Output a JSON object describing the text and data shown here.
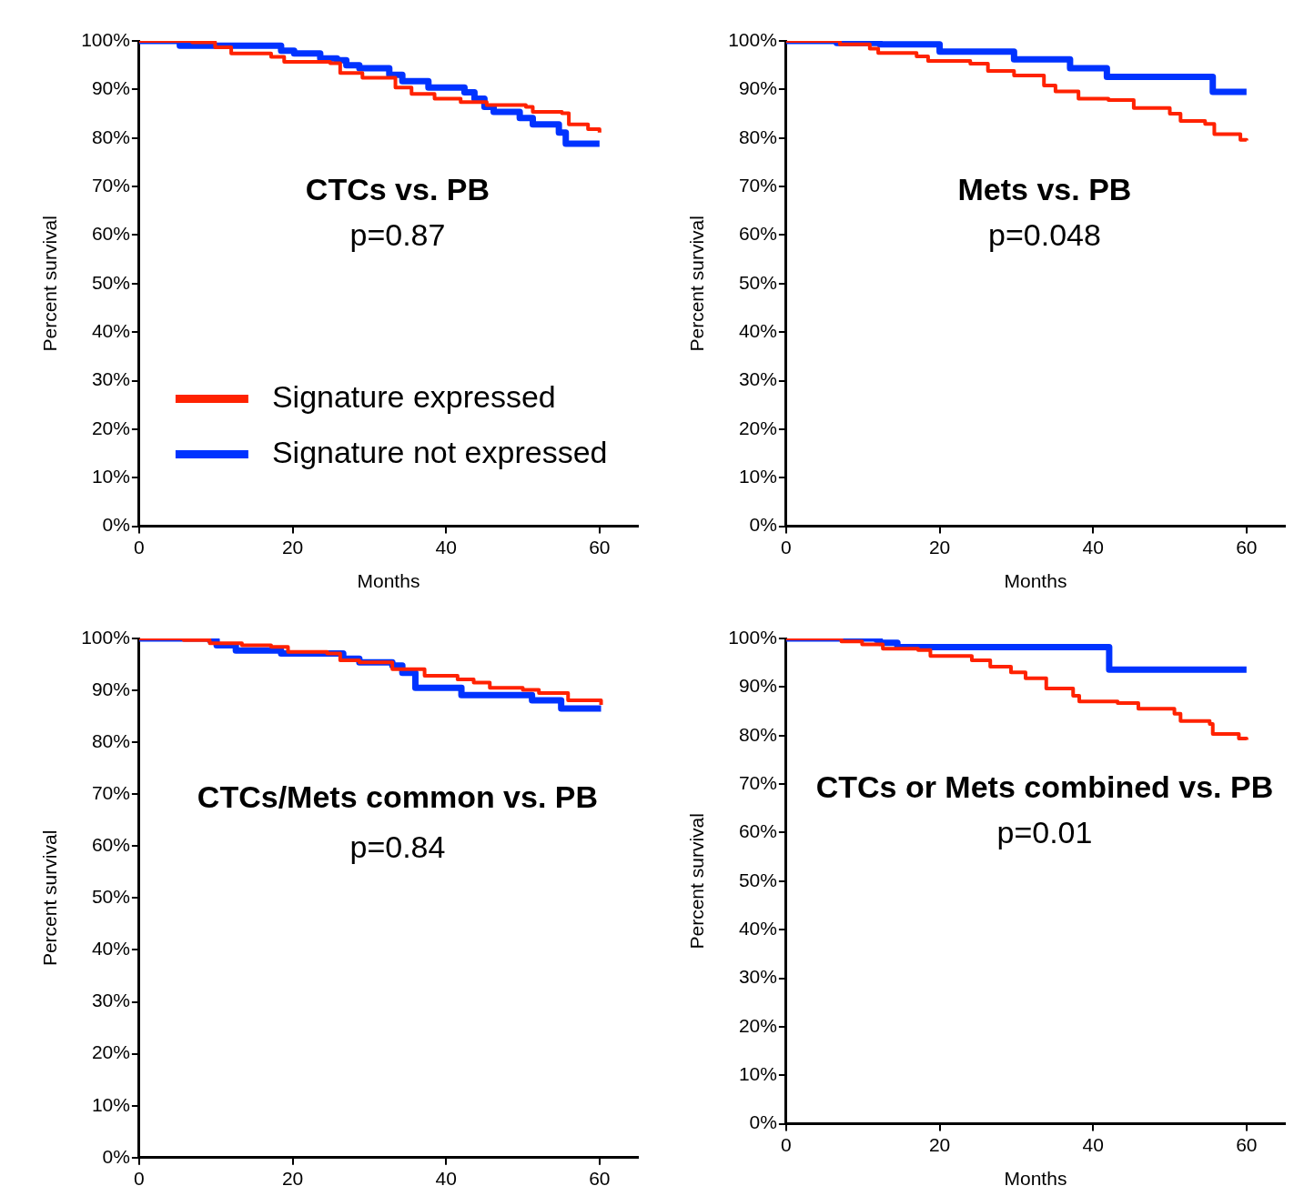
{
  "chart_data": [
    {
      "type": "step",
      "title": "CTCs vs. PB",
      "annotations": [
        "p=0.87"
      ],
      "xlabel": "Months",
      "ylabel": "Percent survival",
      "xlim": [
        0,
        65
      ],
      "xticks": [
        0,
        20,
        40,
        60
      ],
      "ylim": [
        0,
        100
      ],
      "yticks": [
        {
          "value": 0,
          "label": "0%"
        },
        {
          "value": 10,
          "label": "10%"
        },
        {
          "value": 20,
          "label": "20%"
        },
        {
          "value": 30,
          "label": "30%"
        },
        {
          "value": 40,
          "label": "40%"
        },
        {
          "value": 50,
          "label": "50%"
        },
        {
          "value": 60,
          "label": "60%"
        },
        {
          "value": 70,
          "label": "70%"
        },
        {
          "value": 80,
          "label": "80%"
        },
        {
          "value": 90,
          "label": "90%"
        },
        {
          "value": 100,
          "label": "100%"
        }
      ],
      "grid": false,
      "legend": "bottom left",
      "marker": "none",
      "line_style": "solid",
      "series": [
        {
          "name": "Signature expressed",
          "color": "#ff2200",
          "x": [
            0,
            4.8,
            6.9,
            9.9,
            12.0,
            17.2,
            18.9,
            24.9,
            26.2,
            29.1,
            33.4,
            35.5,
            38.5,
            41.9,
            45.3,
            50.4,
            51.3,
            55.1,
            56.0,
            58.5,
            60.0
          ],
          "values": [
            100,
            100,
            99.7,
            98.7,
            97.4,
            96.7,
            95.7,
            95.4,
            93.4,
            92.4,
            90.4,
            89.1,
            88.1,
            87.4,
            86.8,
            86.4,
            85.4,
            85.1,
            82.8,
            81.8,
            81.1
          ]
        },
        {
          "name": "Signature not expressed",
          "color": "#0033ff",
          "x": [
            0,
            4.8,
            5.3,
            18.1,
            18.5,
            20.2,
            23.6,
            25.8,
            27.0,
            28.7,
            32.6,
            34.3,
            37.7,
            42.4,
            43.7,
            45.0,
            46.2,
            49.6,
            51.3,
            54.7,
            55.6,
            60.0
          ],
          "values": [
            100,
            100,
            99.0,
            99.0,
            98.0,
            97.4,
            96.4,
            96.0,
            95.0,
            94.4,
            93.0,
            91.7,
            90.4,
            89.4,
            88.1,
            86.4,
            85.4,
            84.1,
            82.8,
            81.1,
            78.8,
            78.8
          ]
        }
      ]
    },
    {
      "type": "step",
      "title": "Mets vs. PB",
      "annotations": [
        "p=0.048"
      ],
      "xlabel": "Months",
      "ylabel": "Percent survival",
      "xlim": [
        0,
        65
      ],
      "xticks": [
        0,
        20,
        40,
        60
      ],
      "ylim": [
        0,
        100
      ],
      "yticks": [
        {
          "value": 0,
          "label": "0%"
        },
        {
          "value": 10,
          "label": "10%"
        },
        {
          "value": 20,
          "label": "20%"
        },
        {
          "value": 30,
          "label": "30%"
        },
        {
          "value": 40,
          "label": "40%"
        },
        {
          "value": 50,
          "label": "50%"
        },
        {
          "value": 60,
          "label": "60%"
        },
        {
          "value": 70,
          "label": "70%"
        },
        {
          "value": 80,
          "label": "80%"
        },
        {
          "value": 90,
          "label": "90%"
        },
        {
          "value": 100,
          "label": "100%"
        }
      ],
      "grid": false,
      "marker": "none",
      "line_style": "solid",
      "series": [
        {
          "color": "#ff2200",
          "x": [
            0,
            5.1,
            7.0,
            10.9,
            12.0,
            17.0,
            18.5,
            24.0,
            26.3,
            29.7,
            33.6,
            35.1,
            38.1,
            42.0,
            45.3,
            50.0,
            51.4,
            54.6,
            55.8,
            59.2,
            60.0
          ],
          "values": [
            100,
            100,
            99.3,
            98.4,
            97.5,
            96.8,
            95.9,
            95.3,
            93.8,
            92.9,
            90.8,
            89.6,
            88.1,
            87.8,
            86.2,
            85.0,
            83.5,
            82.9,
            80.8,
            79.6,
            79.5
          ]
        },
        {
          "color": "#0033ff",
          "x": [
            0,
            6.6,
            12.2,
            20.0,
            29.7,
            37.0,
            41.8,
            55.6,
            60.0
          ],
          "values": [
            100,
            99.6,
            99.3,
            97.8,
            96.2,
            94.4,
            92.6,
            89.5,
            89.5
          ]
        }
      ]
    },
    {
      "type": "step",
      "title": "CTCs/Mets common vs. PB",
      "annotations": [
        "p=0.84"
      ],
      "ylabel": "Percent survival",
      "xlim": [
        0,
        65
      ],
      "xticks": [
        0,
        20,
        40,
        60
      ],
      "ylim": [
        0,
        100
      ],
      "yticks": [
        {
          "value": 0,
          "label": "0%"
        },
        {
          "value": 10,
          "label": "10%"
        },
        {
          "value": 20,
          "label": "20%"
        },
        {
          "value": 30,
          "label": "30%"
        },
        {
          "value": 40,
          "label": "40%"
        },
        {
          "value": 50,
          "label": "50%"
        },
        {
          "value": 60,
          "label": "60%"
        },
        {
          "value": 70,
          "label": "70%"
        },
        {
          "value": 80,
          "label": "80%"
        },
        {
          "value": 90,
          "label": "90%"
        },
        {
          "value": 100,
          "label": "100%"
        }
      ],
      "grid": false,
      "marker": "none",
      "line_style": "solid",
      "series": [
        {
          "color": "#ff2200",
          "x": [
            0,
            4.9,
            5.8,
            9.2,
            13.4,
            17.2,
            19.4,
            24.5,
            26.2,
            28.7,
            33.0,
            37.2,
            41.5,
            43.6,
            45.7,
            50.0,
            52.1,
            55.9,
            60.2
          ],
          "values": [
            100,
            100,
            99.7,
            99.1,
            98.7,
            98.4,
            97.4,
            97.1,
            95.8,
            95.4,
            94.1,
            92.8,
            92.1,
            91.5,
            90.5,
            90.1,
            89.5,
            88.1,
            87.2
          ]
        },
        {
          "color": "#0033ff",
          "x": [
            0,
            6.3,
            9.2,
            10.1,
            12.6,
            18.5,
            26.6,
            28.7,
            33.0,
            34.3,
            36.0,
            42.0,
            51.2,
            55.0,
            60.2
          ],
          "values": [
            100,
            100,
            99.7,
            98.7,
            97.7,
            97.1,
            96.1,
            95.4,
            94.8,
            93.4,
            90.5,
            89.1,
            88.1,
            86.5,
            86.5
          ]
        }
      ]
    },
    {
      "type": "step",
      "title": "CTCs or Mets combined vs. PB",
      "annotations": [
        "p=0.01"
      ],
      "xlabel": "Months",
      "ylabel": "Percent survival",
      "xlim": [
        0,
        65
      ],
      "xticks": [
        0,
        20,
        40,
        60
      ],
      "ylim": [
        0,
        100
      ],
      "yticks": [
        {
          "value": 0,
          "label": "0%"
        },
        {
          "value": 10,
          "label": "10%"
        },
        {
          "value": 20,
          "label": "20%"
        },
        {
          "value": 30,
          "label": "30%"
        },
        {
          "value": 40,
          "label": "40%"
        },
        {
          "value": 50,
          "label": "50%"
        },
        {
          "value": 60,
          "label": "60%"
        },
        {
          "value": 70,
          "label": "70%"
        },
        {
          "value": 80,
          "label": "80%"
        },
        {
          "value": 90,
          "label": "90%"
        },
        {
          "value": 100,
          "label": "100%"
        }
      ],
      "grid": false,
      "marker": "none",
      "line_style": "solid",
      "series": [
        {
          "color": "#ff2200",
          "x": [
            0,
            4.8,
            7.2,
            9.9,
            12.6,
            17.2,
            18.8,
            24.2,
            26.6,
            29.3,
            31.2,
            33.9,
            37.4,
            38.2,
            43.2,
            45.9,
            50.6,
            51.4,
            55.2,
            55.6,
            59.0,
            60.0
          ],
          "values": [
            100,
            100,
            99.4,
            98.8,
            97.9,
            97.6,
            96.4,
            95.5,
            94.2,
            93.0,
            91.8,
            89.7,
            88.2,
            87.0,
            86.7,
            85.5,
            84.5,
            83.0,
            82.4,
            80.3,
            79.4,
            79.1
          ]
        },
        {
          "color": "#0033ff",
          "x": [
            0,
            9.1,
            11.8,
            12.2,
            14.5,
            42.1,
            60.0
          ],
          "values": [
            100,
            100,
            99.7,
            99.1,
            98.2,
            93.6,
            93.6
          ]
        }
      ]
    }
  ]
}
